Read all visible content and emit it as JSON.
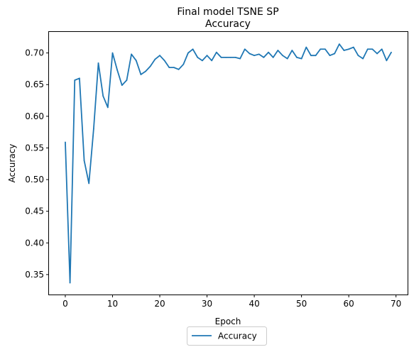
{
  "chart_data": {
    "type": "line",
    "title": "Final model TSNE SP",
    "subtitle": "Accuracy",
    "xlabel": "Epoch",
    "ylabel": "Accuracy",
    "xlim": [
      -3.45,
      72.45
    ],
    "ylim": [
      0.3185,
      0.7332
    ],
    "xticks": [
      0,
      10,
      20,
      30,
      40,
      50,
      60,
      70
    ],
    "yticks": [
      0.35,
      0.4,
      0.45,
      0.5,
      0.55,
      0.6,
      0.65,
      0.7
    ],
    "ytick_labels": [
      "0.35",
      "0.40",
      "0.45",
      "0.50",
      "0.55",
      "0.60",
      "0.65",
      "0.70"
    ],
    "grid": false,
    "legend_position": "below-center",
    "series": [
      {
        "name": "Accuracy",
        "color": "#1f77b4",
        "x": [
          0,
          1,
          2,
          3,
          4,
          5,
          6,
          7,
          8,
          9,
          10,
          11,
          12,
          13,
          14,
          15,
          16,
          17,
          18,
          19,
          20,
          21,
          22,
          23,
          24,
          25,
          26,
          27,
          28,
          29,
          30,
          31,
          32,
          33,
          34,
          35,
          36,
          37,
          38,
          39,
          40,
          41,
          42,
          43,
          44,
          45,
          46,
          47,
          48,
          49,
          50,
          51,
          52,
          53,
          54,
          55,
          56,
          57,
          58,
          59,
          60,
          61,
          62,
          63,
          64,
          65,
          66,
          67,
          68,
          69
        ],
        "values": [
          0.559,
          0.337,
          0.657,
          0.66,
          0.53,
          0.494,
          0.58,
          0.684,
          0.632,
          0.614,
          0.7,
          0.673,
          0.649,
          0.657,
          0.698,
          0.688,
          0.666,
          0.671,
          0.679,
          0.69,
          0.696,
          0.688,
          0.677,
          0.677,
          0.674,
          0.682,
          0.7,
          0.706,
          0.693,
          0.688,
          0.696,
          0.688,
          0.701,
          0.693,
          0.693,
          0.693,
          0.693,
          0.691,
          0.706,
          0.699,
          0.696,
          0.698,
          0.693,
          0.701,
          0.693,
          0.704,
          0.696,
          0.691,
          0.704,
          0.693,
          0.691,
          0.709,
          0.696,
          0.696,
          0.706,
          0.706,
          0.696,
          0.699,
          0.714,
          0.704,
          0.706,
          0.709,
          0.696,
          0.691,
          0.706,
          0.706,
          0.699,
          0.706,
          0.688,
          0.701
        ]
      }
    ]
  }
}
